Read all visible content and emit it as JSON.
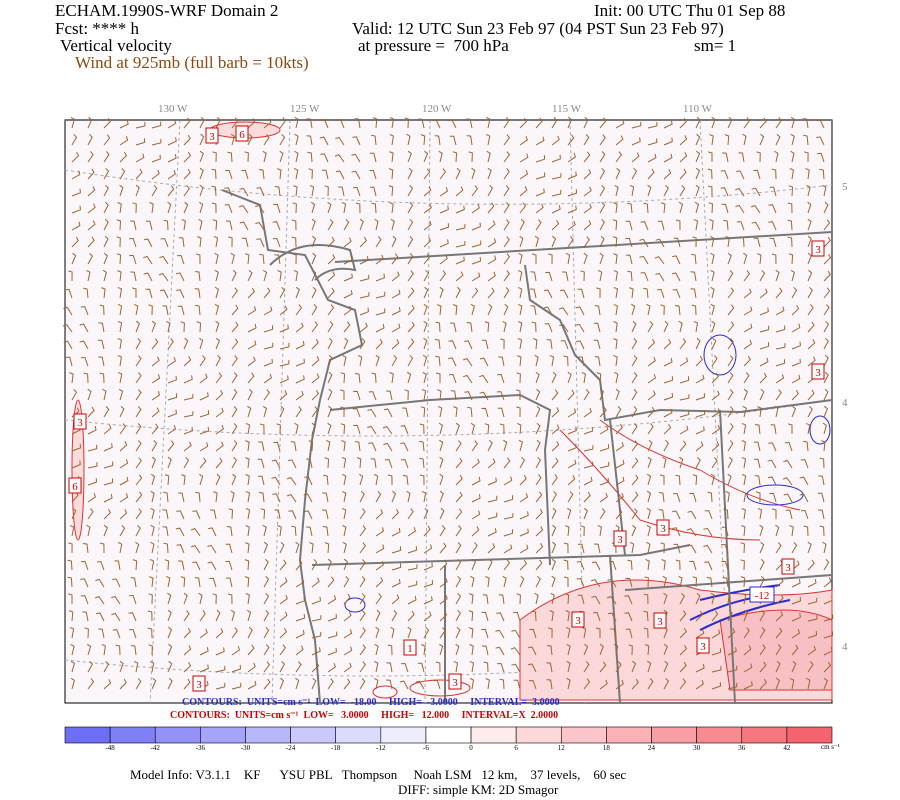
{
  "header": {
    "title": "ECHAM.1990S-WRF Domain 2",
    "forecast": "Fcst: **** h",
    "field": "Vertical velocity",
    "wind": "Wind at 925mb (full barb = 10kts)",
    "init": "Init: 00 UTC Thu 01 Sep 88",
    "valid": "Valid: 12 UTC Sun 23 Feb 97 (04 PST Sun 23 Feb 97)",
    "pressure": "at pressure =  700 hPa",
    "smoothing": "sm= 1"
  },
  "map": {
    "longitude_labels": [
      "130 W",
      "125 W",
      "120 W",
      "115 W",
      "110 W"
    ],
    "latitude_labels": [
      "5",
      "4",
      "4"
    ],
    "contour_labels": [
      "3",
      "6",
      "3",
      "3",
      "6",
      "3",
      "3",
      "3",
      "-12",
      "3",
      "3",
      "1",
      "3",
      "3",
      "3",
      "3"
    ]
  },
  "contour_info": {
    "negative": "CONTOURS:  UNITS=cm s⁻¹  LOW=  -18.00     HIGH=  -3.0000     INTERVAL=  3.0000",
    "positive": "CONTOURS:  UNITS=cm s⁻¹  LOW=   3.0000     HIGH=   12.000     INTERVAL=X  2.0000"
  },
  "colorbar": {
    "ticks": [
      "-48",
      "-42",
      "-36",
      "-30",
      "-24",
      "-18",
      "-12",
      "-6",
      "0",
      "6",
      "12",
      "18",
      "24",
      "30",
      "36",
      "42"
    ],
    "unit": "cm s⁻¹"
  },
  "footer": {
    "model_info": "Model Info: V3.1.1    KF      YSU PBL   Thompson     Noah LSM   12 km,    37 levels,    60 sec",
    "diffusion": "DIFF: simple KM: 2D Smagor"
  }
}
